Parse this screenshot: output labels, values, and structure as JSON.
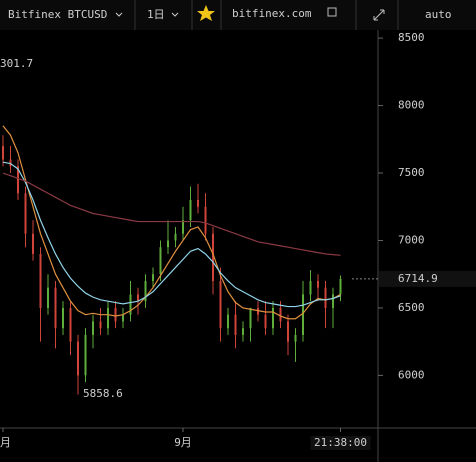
{
  "toolbar": {
    "symbol": "Bitfinex BTCUSD",
    "interval": "1日",
    "site": "bitfinex.com",
    "scale_mode": "auto"
  },
  "chart_data": {
    "type": "candlestick",
    "categories": [
      "月",
      null,
      null,
      null,
      null,
      null,
      null,
      null,
      null,
      null,
      null,
      null,
      null,
      null,
      null,
      null,
      null,
      null,
      null,
      null,
      null,
      null,
      null,
      null,
      "9月",
      null,
      null,
      null,
      null,
      null,
      null,
      null,
      null,
      null,
      null,
      null,
      null,
      null,
      null,
      null,
      null,
      null,
      null,
      null,
      null,
      "21:38:00"
    ],
    "open": [
      7700,
      7600,
      7550,
      7350,
      7050,
      6900,
      6500,
      6650,
      6350,
      6500,
      6250,
      6000,
      6300,
      6400,
      6350,
      6500,
      6400,
      6450,
      6600,
      6550,
      6700,
      6750,
      6950,
      7000,
      7050,
      7150,
      7300,
      7250,
      7050,
      6700,
      6350,
      6450,
      6300,
      6350,
      6500,
      6450,
      6350,
      6500,
      6400,
      6250,
      6300,
      6600,
      6700,
      6650,
      6500,
      6600
    ],
    "high": [
      7780,
      7700,
      7600,
      7400,
      7150,
      6950,
      6750,
      6700,
      6550,
      6550,
      6300,
      6350,
      6450,
      6500,
      6550,
      6550,
      6500,
      6700,
      6650,
      6750,
      6800,
      7000,
      7150,
      7100,
      7250,
      7400,
      7420,
      7350,
      7100,
      6800,
      6500,
      6550,
      6400,
      6500,
      6550,
      6550,
      6550,
      6550,
      6450,
      6350,
      6700,
      6780,
      6750,
      6700,
      6650,
      6740
    ],
    "low": [
      7550,
      7500,
      7300,
      6950,
      6850,
      6250,
      6450,
      6200,
      6300,
      6150,
      5858.6,
      5950,
      6200,
      6300,
      6300,
      6350,
      6350,
      6400,
      6450,
      6500,
      6650,
      6700,
      6900,
      6950,
      7000,
      7100,
      7200,
      7000,
      6600,
      6250,
      6300,
      6200,
      6250,
      6250,
      6400,
      6300,
      6300,
      6350,
      6150,
      6100,
      6250,
      6550,
      6550,
      6350,
      6350,
      6550
    ],
    "close": [
      7600,
      7550,
      7350,
      7050,
      6900,
      6500,
      6650,
      6350,
      6500,
      6250,
      6000,
      6300,
      6400,
      6350,
      6500,
      6400,
      6450,
      6600,
      6550,
      6700,
      6750,
      6950,
      7000,
      7050,
      7150,
      7300,
      7250,
      7050,
      6700,
      6350,
      6450,
      6300,
      6350,
      6500,
      6450,
      6350,
      6500,
      6400,
      6250,
      6300,
      6600,
      6700,
      6650,
      6500,
      6600,
      6714.9
    ],
    "up_color": "#5fae3b",
    "down_color": "#d0443a",
    "indicators": [
      {
        "color": "#e0913f",
        "values": [
          7850,
          7780,
          7650,
          7450,
          7250,
          7050,
          6900,
          6750,
          6650,
          6550,
          6480,
          6450,
          6460,
          6450,
          6450,
          6440,
          6450,
          6480,
          6520,
          6580,
          6650,
          6740,
          6830,
          6920,
          7000,
          7080,
          7100,
          7020,
          6900,
          6740,
          6620,
          6540,
          6500,
          6490,
          6480,
          6470,
          6470,
          6440,
          6420,
          6420,
          6460,
          6530,
          6570,
          6560,
          6570,
          6600
        ]
      },
      {
        "color": "#8fd3e8",
        "values": [
          7580,
          7570,
          7530,
          7430,
          7300,
          7150,
          7020,
          6900,
          6800,
          6720,
          6660,
          6610,
          6580,
          6560,
          6550,
          6540,
          6530,
          6540,
          6550,
          6580,
          6620,
          6680,
          6740,
          6800,
          6860,
          6920,
          6940,
          6900,
          6840,
          6760,
          6700,
          6650,
          6620,
          6590,
          6560,
          6540,
          6530,
          6520,
          6510,
          6510,
          6520,
          6540,
          6560,
          6560,
          6570,
          6590
        ]
      },
      {
        "color": "#8a3a44",
        "values": [
          7500,
          7480,
          7460,
          7440,
          7410,
          7380,
          7350,
          7320,
          7290,
          7260,
          7240,
          7220,
          7200,
          7190,
          7180,
          7170,
          7160,
          7150,
          7140,
          7140,
          7140,
          7140,
          7140,
          7140,
          7140,
          7140,
          7140,
          7130,
          7110,
          7090,
          7070,
          7050,
          7030,
          7010,
          6990,
          6980,
          6970,
          6960,
          6950,
          6940,
          6930,
          6920,
          6910,
          6900,
          6895,
          6890
        ]
      }
    ],
    "ylim": [
      5610,
      8560
    ],
    "yticks": [
      6000,
      6500,
      7000,
      7500,
      8000,
      8500
    ],
    "last_price": 6714.9,
    "annotations": [
      "301.7",
      "5858.6"
    ]
  }
}
